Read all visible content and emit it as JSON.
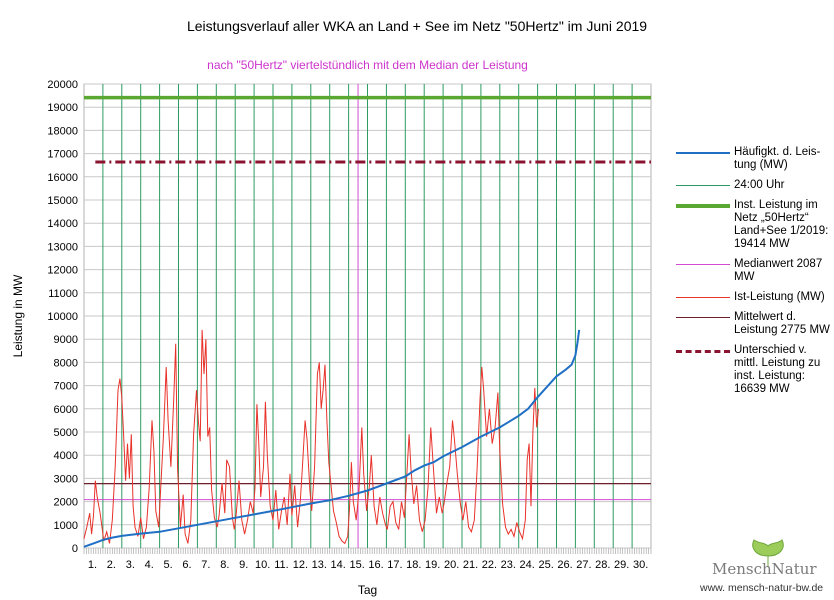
{
  "chart_data": {
    "type": "line",
    "title": "Leistungsverlauf aller WKA an Land + See im Netz \"50Hertz\" im Juni 2019",
    "subtitle": "nach \"50Hertz\" viertelstündlich mit dem Median der Leistung",
    "xlabel": "Tag",
    "ylabel": "Leistung in MW",
    "ylim": [
      0,
      20000
    ],
    "yticks": [
      0,
      1000,
      2000,
      3000,
      4000,
      5000,
      6000,
      7000,
      8000,
      9000,
      10000,
      11000,
      12000,
      13000,
      14000,
      15000,
      16000,
      17000,
      18000,
      19000,
      20000
    ],
    "day_labels": [
      "1.",
      "2.",
      "3.",
      "4.",
      "5.",
      "6.",
      "7.",
      "8.",
      "9.",
      "10.",
      "11.",
      "12.",
      "13.",
      "14.",
      "15.",
      "16.",
      "17.",
      "18.",
      "19.",
      "20.",
      "21.",
      "22.",
      "23.",
      "24.",
      "25.",
      "26.",
      "27.",
      "28.",
      "29.",
      "30."
    ],
    "installed_capacity": 19414,
    "median": 2087,
    "mean": 2775,
    "difference_level": 16639,
    "ist_leistung": [
      [
        0,
        400
      ],
      [
        0.15,
        900
      ],
      [
        0.3,
        1500
      ],
      [
        0.4,
        600
      ],
      [
        0.5,
        1400
      ],
      [
        0.6,
        2900
      ],
      [
        0.7,
        2200
      ],
      [
        0.85,
        1500
      ],
      [
        0.95,
        900
      ],
      [
        1.05,
        300
      ],
      [
        1.2,
        700
      ],
      [
        1.35,
        200
      ],
      [
        1.5,
        1200
      ],
      [
        1.65,
        3500
      ],
      [
        1.8,
        6800
      ],
      [
        1.9,
        7300
      ],
      [
        2.0,
        6500
      ],
      [
        2.1,
        4800
      ],
      [
        2.2,
        2900
      ],
      [
        2.3,
        4500
      ],
      [
        2.4,
        3000
      ],
      [
        2.5,
        4900
      ],
      [
        2.6,
        1800
      ],
      [
        2.7,
        900
      ],
      [
        2.85,
        500
      ],
      [
        3.0,
        1300
      ],
      [
        3.15,
        400
      ],
      [
        3.3,
        900
      ],
      [
        3.45,
        2600
      ],
      [
        3.6,
        5500
      ],
      [
        3.7,
        4200
      ],
      [
        3.8,
        1600
      ],
      [
        3.95,
        900
      ],
      [
        4.05,
        2400
      ],
      [
        4.2,
        4800
      ],
      [
        4.35,
        7800
      ],
      [
        4.45,
        5500
      ],
      [
        4.6,
        3500
      ],
      [
        4.75,
        6500
      ],
      [
        4.85,
        8800
      ],
      [
        4.95,
        3400
      ],
      [
        5.1,
        900
      ],
      [
        5.25,
        2300
      ],
      [
        5.35,
        600
      ],
      [
        5.5,
        200
      ],
      [
        5.65,
        1200
      ],
      [
        5.8,
        4900
      ],
      [
        5.95,
        6800
      ],
      [
        6.05,
        5500
      ],
      [
        6.15,
        4600
      ],
      [
        6.25,
        9400
      ],
      [
        6.35,
        7500
      ],
      [
        6.45,
        9000
      ],
      [
        6.55,
        4800
      ],
      [
        6.65,
        5200
      ],
      [
        6.75,
        2500
      ],
      [
        6.9,
        1300
      ],
      [
        7.05,
        900
      ],
      [
        7.15,
        1400
      ],
      [
        7.3,
        2800
      ],
      [
        7.45,
        1500
      ],
      [
        7.55,
        3800
      ],
      [
        7.7,
        3500
      ],
      [
        7.85,
        1300
      ],
      [
        7.95,
        800
      ],
      [
        8.05,
        1400
      ],
      [
        8.2,
        2900
      ],
      [
        8.35,
        1200
      ],
      [
        8.5,
        600
      ],
      [
        8.65,
        1200
      ],
      [
        8.8,
        2000
      ],
      [
        8.95,
        1500
      ],
      [
        9.05,
        2600
      ],
      [
        9.15,
        6200
      ],
      [
        9.25,
        4500
      ],
      [
        9.35,
        2200
      ],
      [
        9.5,
        3500
      ],
      [
        9.6,
        6300
      ],
      [
        9.7,
        4000
      ],
      [
        9.85,
        1800
      ],
      [
        10.0,
        1200
      ],
      [
        10.15,
        2500
      ],
      [
        10.3,
        800
      ],
      [
        10.45,
        1600
      ],
      [
        10.6,
        2200
      ],
      [
        10.75,
        1000
      ],
      [
        10.9,
        3200
      ],
      [
        11.0,
        1400
      ],
      [
        11.15,
        2700
      ],
      [
        11.3,
        900
      ],
      [
        11.45,
        2100
      ],
      [
        11.55,
        3400
      ],
      [
        11.7,
        5500
      ],
      [
        11.8,
        4700
      ],
      [
        11.95,
        2500
      ],
      [
        12.05,
        1600
      ],
      [
        12.2,
        3500
      ],
      [
        12.35,
        7500
      ],
      [
        12.45,
        8000
      ],
      [
        12.55,
        6000
      ],
      [
        12.65,
        6800
      ],
      [
        12.75,
        7900
      ],
      [
        12.85,
        5500
      ],
      [
        12.95,
        3700
      ],
      [
        13.05,
        2900
      ],
      [
        13.2,
        1600
      ],
      [
        13.35,
        1100
      ],
      [
        13.5,
        500
      ],
      [
        13.65,
        300
      ],
      [
        13.8,
        200
      ],
      [
        13.95,
        500
      ],
      [
        14.05,
        1700
      ],
      [
        14.15,
        3700
      ],
      [
        14.25,
        2000
      ],
      [
        14.4,
        1200
      ],
      [
        14.55,
        2500
      ],
      [
        14.7,
        5200
      ],
      [
        14.8,
        3200
      ],
      [
        14.95,
        1600
      ],
      [
        15.1,
        2700
      ],
      [
        15.2,
        4000
      ],
      [
        15.35,
        1800
      ],
      [
        15.5,
        1000
      ],
      [
        15.65,
        2200
      ],
      [
        15.8,
        1500
      ],
      [
        15.95,
        1000
      ],
      [
        16.05,
        800
      ],
      [
        16.2,
        1800
      ],
      [
        16.35,
        2000
      ],
      [
        16.5,
        1100
      ],
      [
        16.65,
        800
      ],
      [
        16.8,
        2000
      ],
      [
        16.95,
        1300
      ],
      [
        17.05,
        2700
      ],
      [
        17.2,
        4900
      ],
      [
        17.3,
        3400
      ],
      [
        17.45,
        1900
      ],
      [
        17.6,
        2700
      ],
      [
        17.75,
        1200
      ],
      [
        17.9,
        700
      ],
      [
        18.05,
        1200
      ],
      [
        18.2,
        2600
      ],
      [
        18.35,
        5200
      ],
      [
        18.5,
        3300
      ],
      [
        18.65,
        1500
      ],
      [
        18.8,
        2200
      ],
      [
        18.95,
        1500
      ],
      [
        19.05,
        1900
      ],
      [
        19.2,
        2800
      ],
      [
        19.35,
        3500
      ],
      [
        19.5,
        5500
      ],
      [
        19.6,
        4700
      ],
      [
        19.75,
        3200
      ],
      [
        19.9,
        2000
      ],
      [
        20.05,
        1200
      ],
      [
        20.2,
        2000
      ],
      [
        20.35,
        900
      ],
      [
        20.5,
        700
      ],
      [
        20.65,
        1200
      ],
      [
        20.8,
        3400
      ],
      [
        20.95,
        6400
      ],
      [
        21.05,
        7800
      ],
      [
        21.15,
        6800
      ],
      [
        21.3,
        4800
      ],
      [
        21.45,
        6000
      ],
      [
        21.6,
        4500
      ],
      [
        21.75,
        5200
      ],
      [
        21.9,
        6700
      ],
      [
        22.0,
        4200
      ],
      [
        22.15,
        1900
      ],
      [
        22.3,
        900
      ],
      [
        22.45,
        600
      ],
      [
        22.6,
        800
      ],
      [
        22.75,
        500
      ],
      [
        22.9,
        1100
      ],
      [
        23.05,
        700
      ],
      [
        23.2,
        400
      ],
      [
        23.35,
        1200
      ],
      [
        23.45,
        3800
      ],
      [
        23.55,
        4500
      ],
      [
        23.65,
        1800
      ],
      [
        23.75,
        5000
      ],
      [
        23.85,
        6900
      ],
      [
        23.95,
        5200
      ],
      [
        24.05,
        6000
      ]
    ],
    "haeufigkeit": [
      [
        0,
        50
      ],
      [
        0.5,
        200
      ],
      [
        1.0,
        350
      ],
      [
        1.5,
        450
      ],
      [
        2.0,
        520
      ],
      [
        3.0,
        620
      ],
      [
        4.0,
        700
      ],
      [
        5.0,
        850
      ],
      [
        6.0,
        1000
      ],
      [
        7.0,
        1150
      ],
      [
        8.0,
        1300
      ],
      [
        9.0,
        1450
      ],
      [
        10.0,
        1600
      ],
      [
        11.0,
        1760
      ],
      [
        12.0,
        1920
      ],
      [
        13.0,
        2060
      ],
      [
        14.0,
        2250
      ],
      [
        15.0,
        2480
      ],
      [
        16.0,
        2780
      ],
      [
        17.0,
        3080
      ],
      [
        17.5,
        3350
      ],
      [
        18.0,
        3550
      ],
      [
        18.5,
        3700
      ],
      [
        19.0,
        3950
      ],
      [
        20.0,
        4350
      ],
      [
        21.0,
        4800
      ],
      [
        22.0,
        5200
      ],
      [
        23.0,
        5700
      ],
      [
        23.5,
        6000
      ],
      [
        24.0,
        6500
      ],
      [
        24.5,
        6950
      ],
      [
        25.0,
        7400
      ],
      [
        25.5,
        7700
      ],
      [
        25.8,
        7900
      ],
      [
        26.0,
        8300
      ],
      [
        26.1,
        8800
      ],
      [
        26.2,
        9400
      ]
    ],
    "series_labels": {
      "haeufigkeit": "Häufigkt. d. Leis- tung (MW)",
      "uhr": "24:00 Uhr",
      "installiert": "Inst. Leistung im Netz „50Hertz“ Land+See 1/2019: 19414 MW",
      "median": "Medianwert 2087 MW",
      "ist": "Ist-Leistung (MW)",
      "mittelwert": "Mittelwert d. Leistung 2775 MW",
      "unterschied": "Unterschied v. mittl. Leistung zu inst. Leistung: 16639 MW"
    },
    "colors": {
      "haeufigkeit": "#1f6fc5",
      "uhr": "#2e9b62",
      "installiert": "#5aa832",
      "median": "#d24bd2",
      "ist": "#e8322a",
      "mittelwert": "#6a1f2b",
      "unterschied": "#8a1430"
    }
  },
  "logo": {
    "name": "MenschNatur",
    "url": "www. mensch-natur-bw.de"
  }
}
